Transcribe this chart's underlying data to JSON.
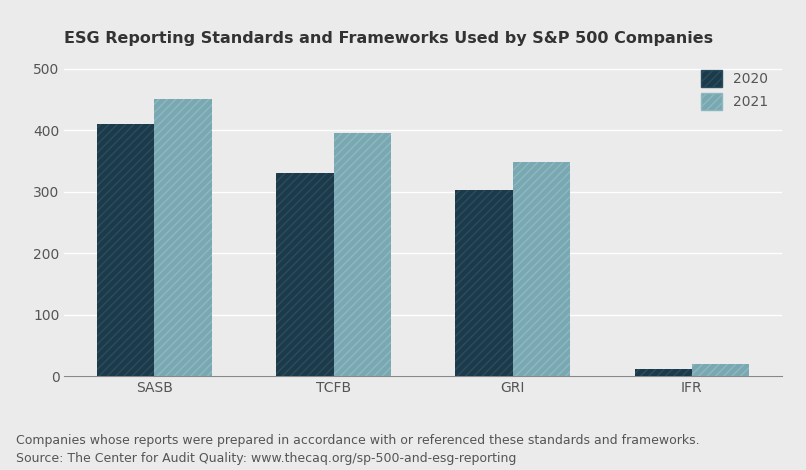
{
  "title": "ESG Reporting Standards and Frameworks Used by S&P 500 Companies",
  "categories": [
    "SASB",
    "TCFB",
    "GRI",
    "IFR"
  ],
  "values_2020": [
    410,
    330,
    302,
    12
  ],
  "values_2021": [
    450,
    395,
    348,
    20
  ],
  "color_2020": "#1c3a4a",
  "color_2021": "#7aa8b2",
  "hatch_color_2020": "#2a4e60",
  "hatch_color_2021": "#8db8c0",
  "background_color": "#ebebeb",
  "ylim": [
    0,
    520
  ],
  "yticks": [
    0,
    100,
    200,
    300,
    400,
    500
  ],
  "footnote1": "Companies whose reports were prepared in accordance with or referenced these standards and frameworks.",
  "footnote2": "Source: The Center for Audit Quality: www.thecaq.org/sp-500-and-esg-reporting",
  "legend_labels": [
    "2020",
    "2021"
  ],
  "bar_width": 0.32,
  "title_fontsize": 11.5,
  "tick_fontsize": 10,
  "footnote_fontsize": 9
}
